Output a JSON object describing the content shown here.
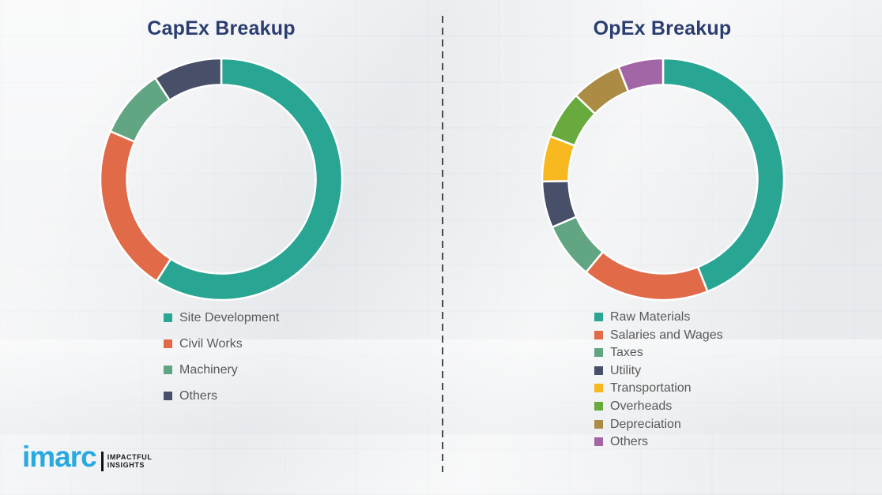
{
  "colors": {
    "background": "#EFF1F3",
    "title_navy": "#2C3E70",
    "legend_text": "#595959",
    "divider_gray": "#4B4B4B",
    "logo_blue": "#29A9E1",
    "logo_black": "#1A1A1A",
    "segment_gap_white": "#FFFFFF"
  },
  "chart_data": [
    {
      "type": "pie",
      "subtype": "donut",
      "title": "CapEx Breakup",
      "labels": [
        "Site Development",
        "Civil Works",
        "Machinery",
        "Others"
      ],
      "values": [
        59,
        22.5,
        9.3,
        9.2
      ],
      "colors": [
        "#29A593",
        "#E16A48",
        "#62A583",
        "#484F68"
      ],
      "start_angle": "12 o'clock, clockwise",
      "inner_radius_ratio": 0.78,
      "legend_position": "below",
      "data_labels_shown": false,
      "note": "values are percent shares estimated from arc angles; no numeric labels shown in image"
    },
    {
      "type": "pie",
      "subtype": "donut",
      "title": "OpEx Breakup",
      "labels": [
        "Raw Materials",
        "Salaries and Wages",
        "Taxes",
        "Utility",
        "Transportation",
        "Overheads",
        "Depreciation",
        "Others"
      ],
      "values": [
        44,
        17,
        7.5,
        6.2,
        6.1,
        6.4,
        6.8,
        6.0
      ],
      "colors": [
        "#29A593",
        "#E16A48",
        "#62A583",
        "#484F68",
        "#F8B81F",
        "#68AA3E",
        "#AC8C44",
        "#A266A6"
      ],
      "start_angle": "12 o'clock, clockwise",
      "inner_radius_ratio": 0.78,
      "legend_position": "below",
      "data_labels_shown": false,
      "note": "values are percent shares estimated from arc angles; no numeric labels shown in image"
    }
  ],
  "logo": {
    "brand": "imarc",
    "tagline_line1": "IMPACTFUL",
    "tagline_line2": "INSIGHTS"
  }
}
